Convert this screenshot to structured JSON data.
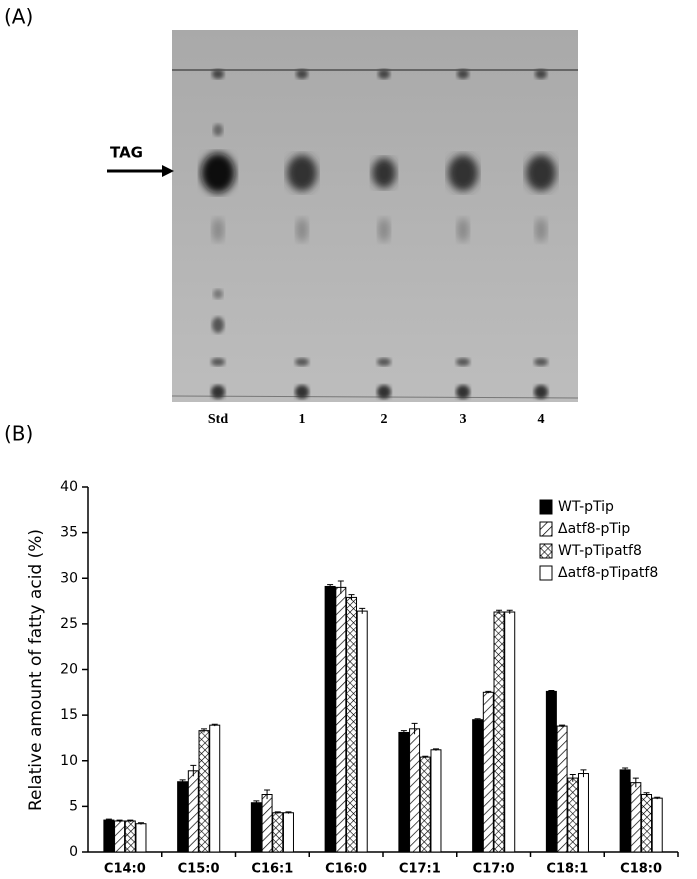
{
  "panel_a": {
    "label": "(A)",
    "arrow_label": "TAG",
    "lanes": [
      "Std",
      "1",
      "2",
      "3",
      "4"
    ]
  },
  "panel_b": {
    "label": "(B)"
  },
  "chart_data": {
    "type": "bar",
    "y_label": "Relative amount of fatty acid (%)",
    "categories": [
      "C14:0",
      "C15:0",
      "C16:1",
      "C16:0",
      "C17:1",
      "C17:0",
      "C18:1",
      "C18:0"
    ],
    "series": [
      {
        "name": "WT-pTip",
        "color": "#000000",
        "pattern": "solid",
        "values": [
          3.5,
          7.7,
          5.4,
          29.1,
          13.1,
          14.5,
          17.6,
          9.0
        ],
        "errors": [
          0.1,
          0.2,
          0.2,
          0.2,
          0.2,
          0.1,
          0.1,
          0.2
        ]
      },
      {
        "name": "Δatf8-pTip",
        "color": "#000000",
        "pattern": "diagonal",
        "values": [
          3.4,
          8.9,
          6.3,
          29.0,
          13.5,
          17.5,
          13.8,
          7.6
        ],
        "errors": [
          0.1,
          0.6,
          0.5,
          0.7,
          0.6,
          0.1,
          0.1,
          0.5
        ]
      },
      {
        "name": "WT-pTipatf8",
        "color": "#000000",
        "pattern": "crosshatch",
        "values": [
          3.4,
          13.3,
          4.3,
          27.9,
          10.4,
          26.3,
          8.1,
          6.3
        ],
        "errors": [
          0.1,
          0.2,
          0.1,
          0.3,
          0.1,
          0.2,
          0.4,
          0.2
        ]
      },
      {
        "name": "Δatf8-pTipatf8",
        "color": "#000000",
        "pattern": "none",
        "values": [
          3.1,
          13.9,
          4.3,
          26.4,
          11.2,
          26.3,
          8.6,
          5.9
        ],
        "errors": [
          0.1,
          0.1,
          0.1,
          0.3,
          0.1,
          0.2,
          0.4,
          0.1
        ]
      }
    ],
    "ylim": [
      0,
      40
    ],
    "yticks": [
      0,
      5,
      10,
      15,
      20,
      25,
      30,
      35,
      40
    ],
    "legend": "top-right",
    "grid": false
  }
}
